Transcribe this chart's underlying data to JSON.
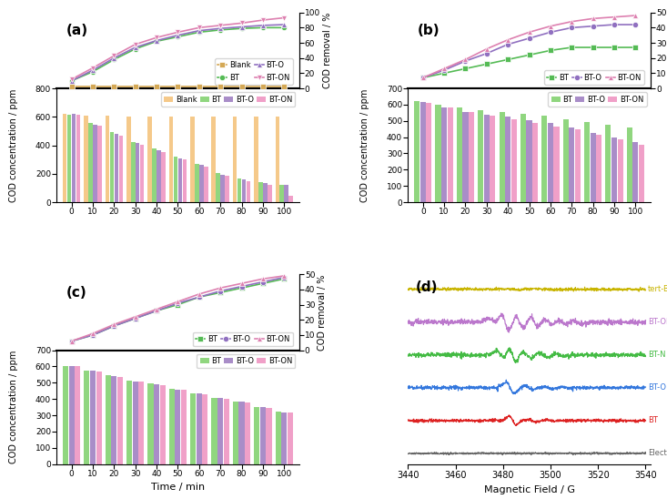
{
  "time": [
    0,
    10,
    20,
    30,
    40,
    50,
    60,
    70,
    80,
    90,
    100
  ],
  "a_line_blank": [
    2,
    2,
    2,
    2,
    2,
    2,
    2,
    2,
    2,
    2,
    2
  ],
  "a_line_BT": [
    10,
    22,
    38,
    52,
    62,
    68,
    74,
    77,
    79,
    80,
    80
  ],
  "a_line_BTO": [
    10,
    24,
    40,
    54,
    63,
    70,
    76,
    79,
    81,
    83,
    84
  ],
  "a_line_BTON": [
    12,
    27,
    43,
    58,
    67,
    74,
    80,
    83,
    86,
    90,
    93
  ],
  "a_bar_blank": [
    620,
    610,
    610,
    605,
    605,
    600,
    600,
    600,
    600,
    600,
    600
  ],
  "a_bar_BT": [
    615,
    555,
    490,
    425,
    375,
    320,
    270,
    205,
    170,
    140,
    125
  ],
  "a_bar_BTO": [
    620,
    545,
    480,
    415,
    365,
    310,
    260,
    195,
    160,
    135,
    120
  ],
  "a_bar_BTON": [
    615,
    540,
    470,
    405,
    355,
    300,
    250,
    185,
    150,
    125,
    45
  ],
  "b_line_BT": [
    7,
    10,
    13,
    16,
    19,
    22,
    25,
    27,
    27,
    27,
    27
  ],
  "b_line_BTO": [
    7,
    12,
    18,
    23,
    29,
    33,
    37,
    40,
    41,
    42,
    42
  ],
  "b_line_BTON": [
    7,
    13,
    19,
    26,
    32,
    37,
    41,
    44,
    46,
    47,
    48
  ],
  "b_bar_BT": [
    620,
    600,
    580,
    565,
    555,
    545,
    530,
    510,
    495,
    475,
    460
  ],
  "b_bar_BTO": [
    615,
    585,
    555,
    540,
    525,
    505,
    490,
    460,
    425,
    400,
    370
  ],
  "b_bar_BTON": [
    610,
    580,
    555,
    530,
    510,
    485,
    465,
    450,
    415,
    385,
    355
  ],
  "c_line_BT": [
    6,
    10,
    16,
    21,
    26,
    30,
    35,
    38,
    41,
    44,
    47
  ],
  "c_line_BTO": [
    6,
    10,
    16,
    21,
    26,
    31,
    35,
    39,
    42,
    45,
    48
  ],
  "c_line_BTON": [
    6,
    11,
    17,
    22,
    27,
    32,
    37,
    41,
    44,
    47,
    49
  ],
  "c_bar_BT": [
    605,
    575,
    545,
    515,
    495,
    460,
    435,
    405,
    385,
    350,
    320
  ],
  "c_bar_BTO": [
    605,
    572,
    542,
    510,
    488,
    458,
    432,
    404,
    382,
    348,
    318
  ],
  "c_bar_BTON": [
    600,
    570,
    538,
    507,
    484,
    455,
    428,
    400,
    378,
    345,
    315
  ],
  "color_blank": "#F5C98A",
  "color_BT": "#90D67F",
  "color_BTO": "#A98DC8",
  "color_BTON": "#F0A0C8",
  "color_line_blank": "#D4A855",
  "color_line_BT": "#55BB55",
  "color_line_BTO": "#9070C0",
  "color_line_BTON": "#DD80B0",
  "color_epr_tBuOH": "#C8B400",
  "color_epr_BTON": "#BB77CC",
  "color_epr_BTN": "#44BB44",
  "color_epr_BTO": "#3377DD",
  "color_epr_BT": "#DD2222",
  "color_epr_blank": "#666666"
}
